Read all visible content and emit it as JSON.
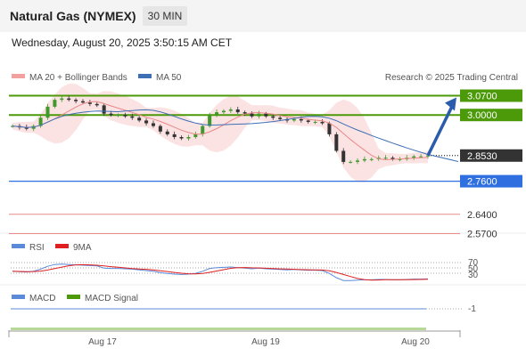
{
  "header": {
    "title": "Natural Gas (NYMEX)",
    "timeframe": "30 MIN"
  },
  "datetime": "Wednesday, August 20, 2025 3:50:15 AM CET",
  "legend": {
    "bb_label": "MA 20 + Bollinger Bands",
    "ma50_label": "MA 50",
    "credit": "Research © 2025 Trading Central"
  },
  "colors": {
    "resistance": "#4c9a0a",
    "support": "#2f6fe0",
    "pivot_weak": "#e88a8a",
    "current": "#333333",
    "bollinger_fill": "#fbdcdc",
    "ma20": "#e88888",
    "ma50": "#3d6fb5",
    "arrow": "#2b5cab"
  },
  "chart_data": [
    {
      "type": "line",
      "name": "price",
      "x_ticks": [
        "Aug 17",
        "Aug 19",
        "Aug 20"
      ],
      "ylim": [
        2.52,
        3.12
      ],
      "values": [
        2.96,
        2.955,
        2.95,
        2.96,
        2.99,
        3.03,
        3.055,
        3.06,
        3.055,
        3.05,
        3.045,
        3.04,
        3.035,
        3.005,
        3.0,
        3.0,
        2.995,
        2.99,
        2.98,
        2.97,
        2.96,
        2.94,
        2.93,
        2.92,
        2.915,
        2.92,
        2.93,
        2.96,
        3.0,
        3.01,
        3.015,
        3.02,
        3.01,
        3.005,
        2.995,
        3.005,
        2.995,
        2.99,
        2.985,
        2.98,
        2.985,
        2.98,
        2.975,
        2.975,
        2.97,
        2.93,
        2.87,
        2.83,
        2.83,
        2.835,
        2.84,
        2.84,
        2.845,
        2.845,
        2.84,
        2.84,
        2.845,
        2.85,
        2.85,
        2.853
      ],
      "current": 2.853,
      "levels": [
        {
          "value": 3.07,
          "label": "3.0700",
          "kind": "resistance"
        },
        {
          "value": 3.0,
          "label": "3.0000",
          "kind": "resistance"
        },
        {
          "value": 2.853,
          "label": "2.8530",
          "kind": "current"
        },
        {
          "value": 2.76,
          "label": "2.7600",
          "kind": "support"
        },
        {
          "value": 2.64,
          "label": "2.6400",
          "kind": "pivot"
        },
        {
          "value": 2.57,
          "label": "2.5700",
          "kind": "pivot"
        }
      ]
    },
    {
      "type": "line",
      "name": "RSI",
      "legend": [
        "RSI",
        "9MA"
      ],
      "ticks": [
        "70",
        "50",
        "30"
      ],
      "ylim": [
        0,
        100
      ]
    },
    {
      "type": "line",
      "name": "MACD",
      "legend": [
        "MACD",
        "MACD Signal"
      ],
      "ticks": [
        "-1"
      ]
    }
  ]
}
